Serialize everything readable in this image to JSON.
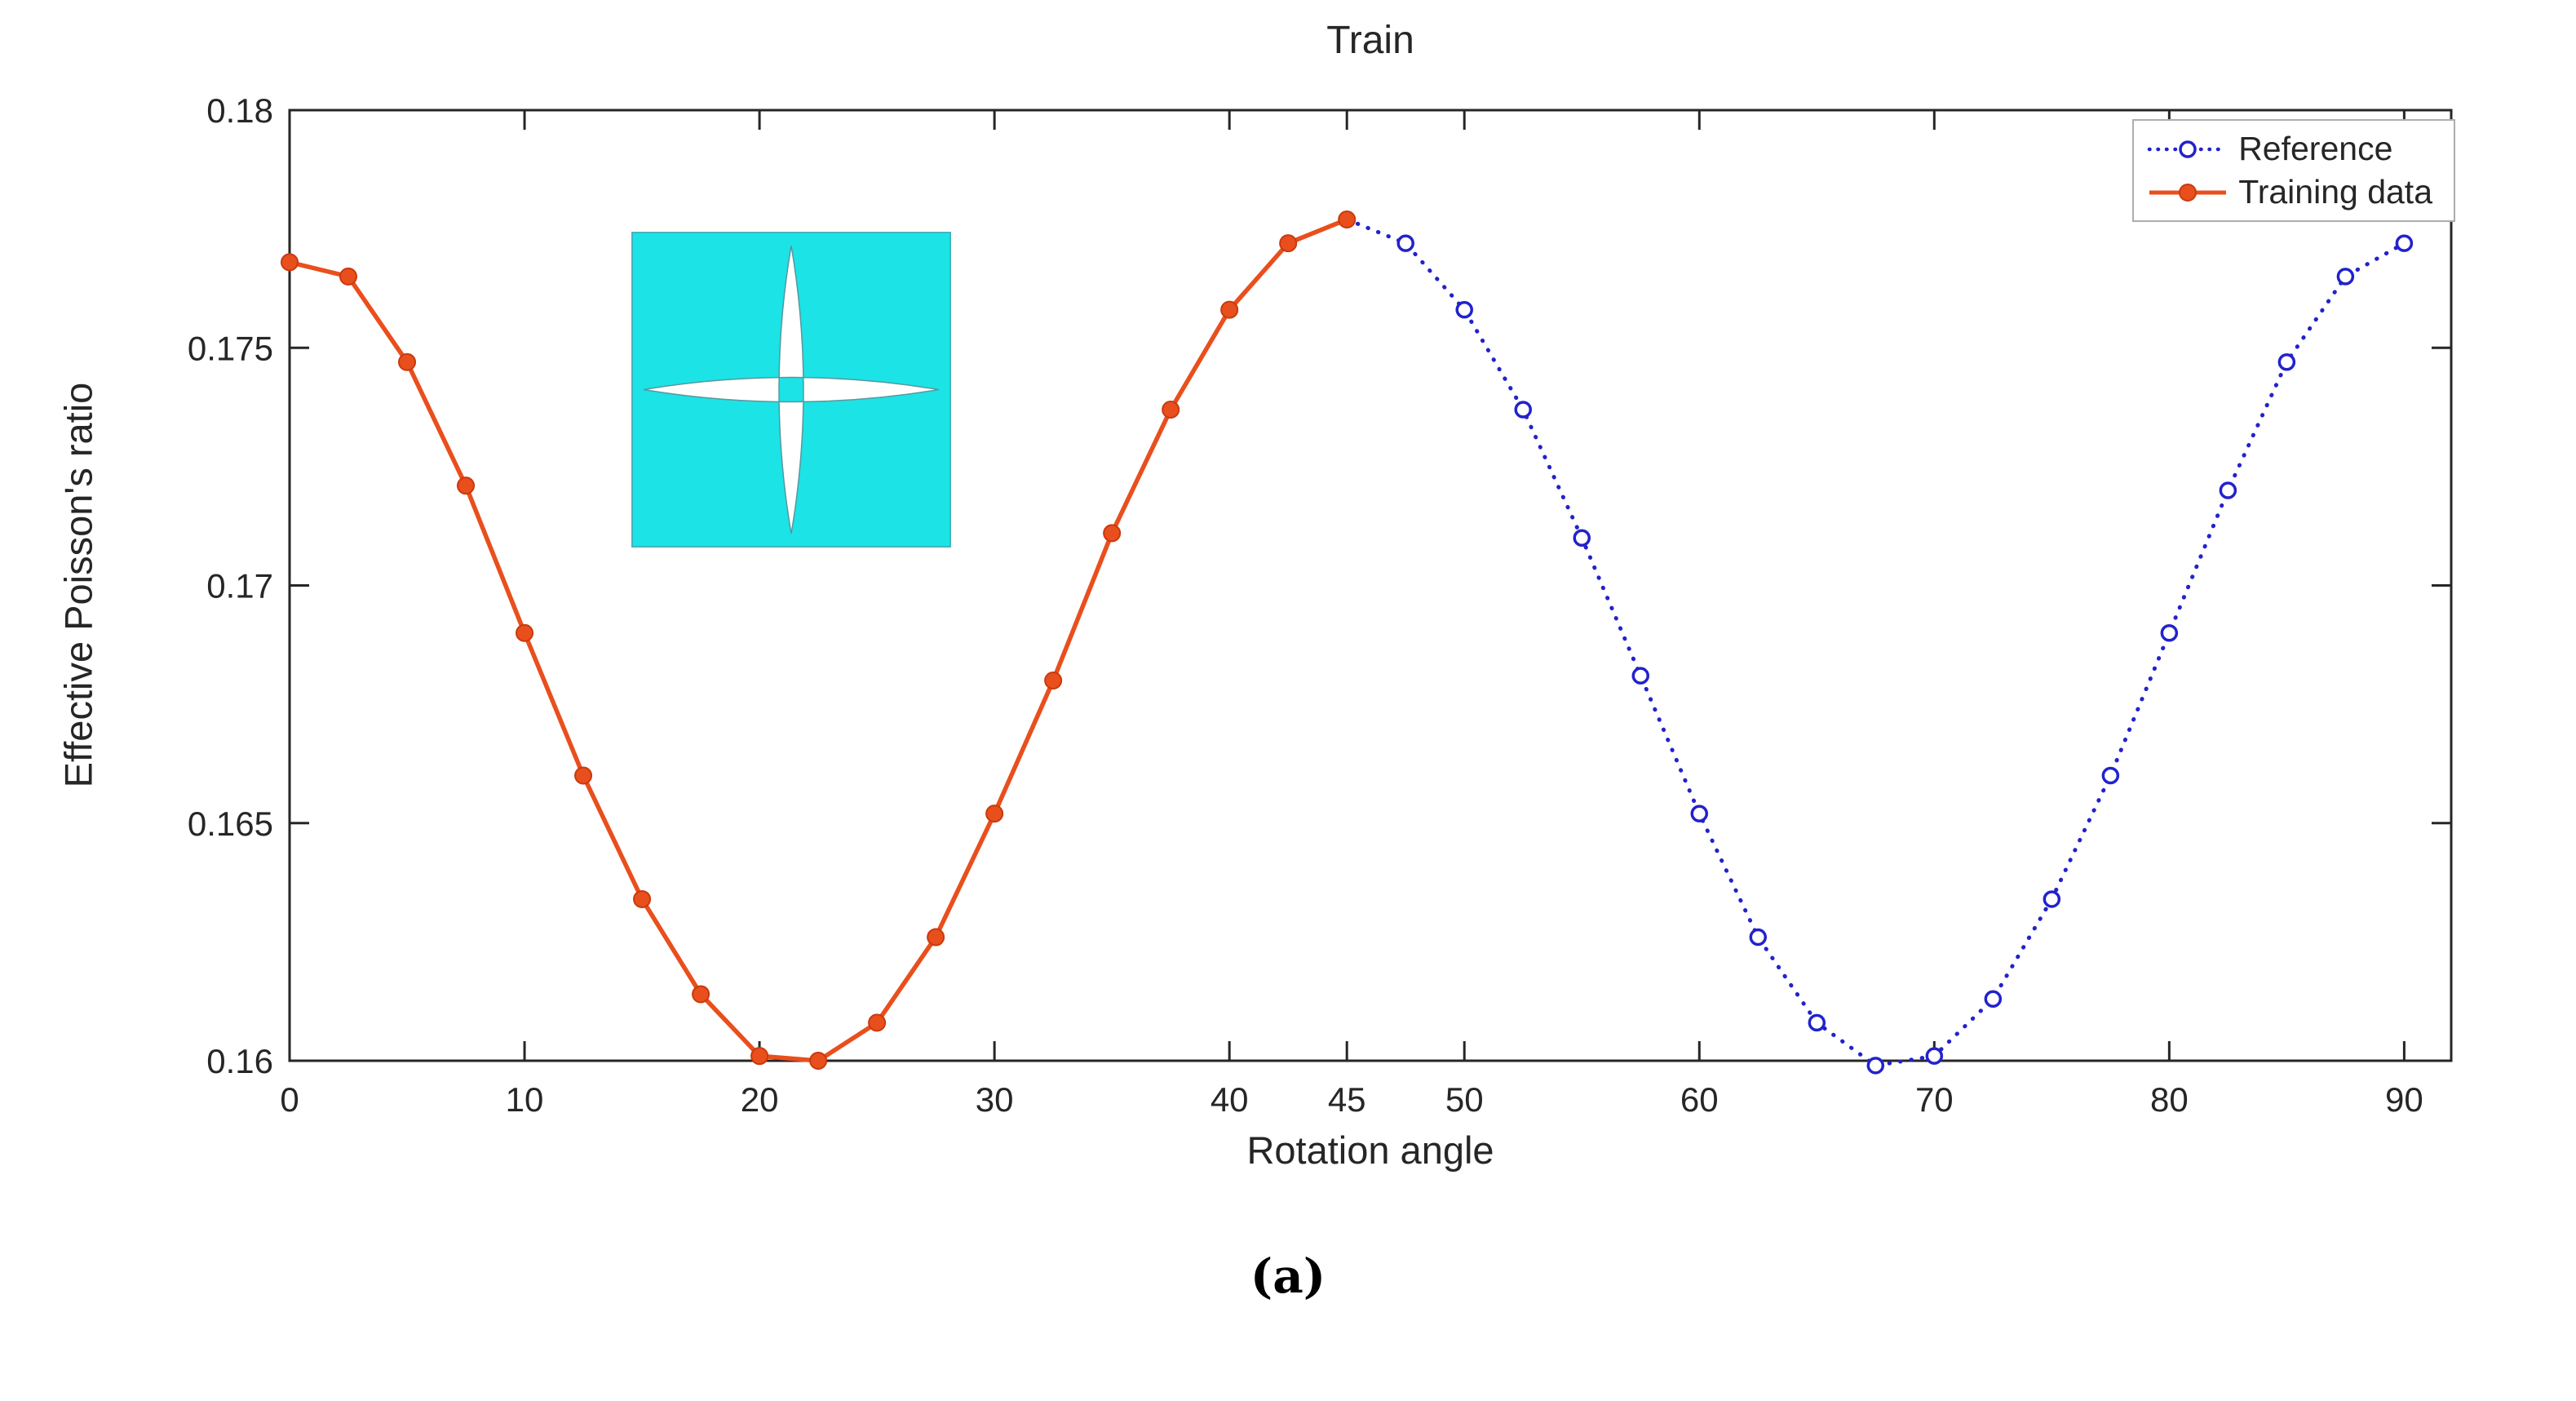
{
  "figure": {
    "caption": "(a)"
  },
  "chart_data": {
    "type": "line",
    "title": "Train",
    "xlabel": "Rotation angle",
    "ylabel": "Effective Poisson's ratio",
    "xlim": [
      0,
      92
    ],
    "ylim": [
      0.16,
      0.18
    ],
    "xticks": [
      0,
      10,
      20,
      30,
      40,
      45,
      50,
      60,
      70,
      80,
      90
    ],
    "xtick_labels": [
      "0",
      "10",
      "20",
      "30",
      "40",
      "45",
      "50",
      "60",
      "70",
      "80",
      "90"
    ],
    "yticks": [
      0.16,
      0.165,
      0.17,
      0.175,
      0.18
    ],
    "ytick_labels": [
      "0.16",
      "0.165",
      "0.17",
      "0.175",
      "0.18"
    ],
    "grid": false,
    "legend_position": "top-right",
    "axis_color": "#262626",
    "series": [
      {
        "name": "Reference",
        "style": "dotted",
        "marker": "open-circle",
        "color": "#2222cc",
        "x": [
          0,
          2.5,
          5,
          7.5,
          10,
          12.5,
          15,
          17.5,
          20,
          22.5,
          25,
          27.5,
          30,
          32.5,
          35,
          37.5,
          40,
          42.5,
          45,
          47.5,
          50,
          52.5,
          55,
          57.5,
          60,
          62.5,
          65,
          67.5,
          70,
          72.5,
          75,
          77.5,
          80,
          82.5,
          85,
          87.5,
          90
        ],
        "y": [
          0.1768,
          0.1765,
          0.1747,
          0.1721,
          0.169,
          0.166,
          0.1634,
          0.1614,
          0.1601,
          0.16,
          0.1608,
          0.1626,
          0.1652,
          0.168,
          0.1711,
          0.1737,
          0.1758,
          0.1772,
          0.1777,
          0.1772,
          0.1758,
          0.1737,
          0.171,
          0.1681,
          0.1652,
          0.1626,
          0.1608,
          0.1599,
          0.1601,
          0.1613,
          0.1634,
          0.166,
          0.169,
          0.172,
          0.1747,
          0.1765,
          0.1772
        ]
      },
      {
        "name": "Training data",
        "style": "solid",
        "marker": "filled-circle",
        "color": "#e94f1d",
        "marker_edge": "#c93a0c",
        "x": [
          0,
          2.5,
          5,
          7.5,
          10,
          12.5,
          15,
          17.5,
          20,
          22.5,
          25,
          27.5,
          30,
          32.5,
          35,
          37.5,
          40,
          42.5,
          45
        ],
        "y": [
          0.1768,
          0.1765,
          0.1747,
          0.1721,
          0.169,
          0.166,
          0.1634,
          0.1614,
          0.1601,
          0.16,
          0.1608,
          0.1626,
          0.1652,
          0.168,
          0.1711,
          0.1737,
          0.1758,
          0.1772,
          0.1777
        ]
      }
    ],
    "inset": {
      "name": "unit-cell-star-inset",
      "background": "#1ce3e6",
      "star_color": "#ffffff"
    }
  }
}
